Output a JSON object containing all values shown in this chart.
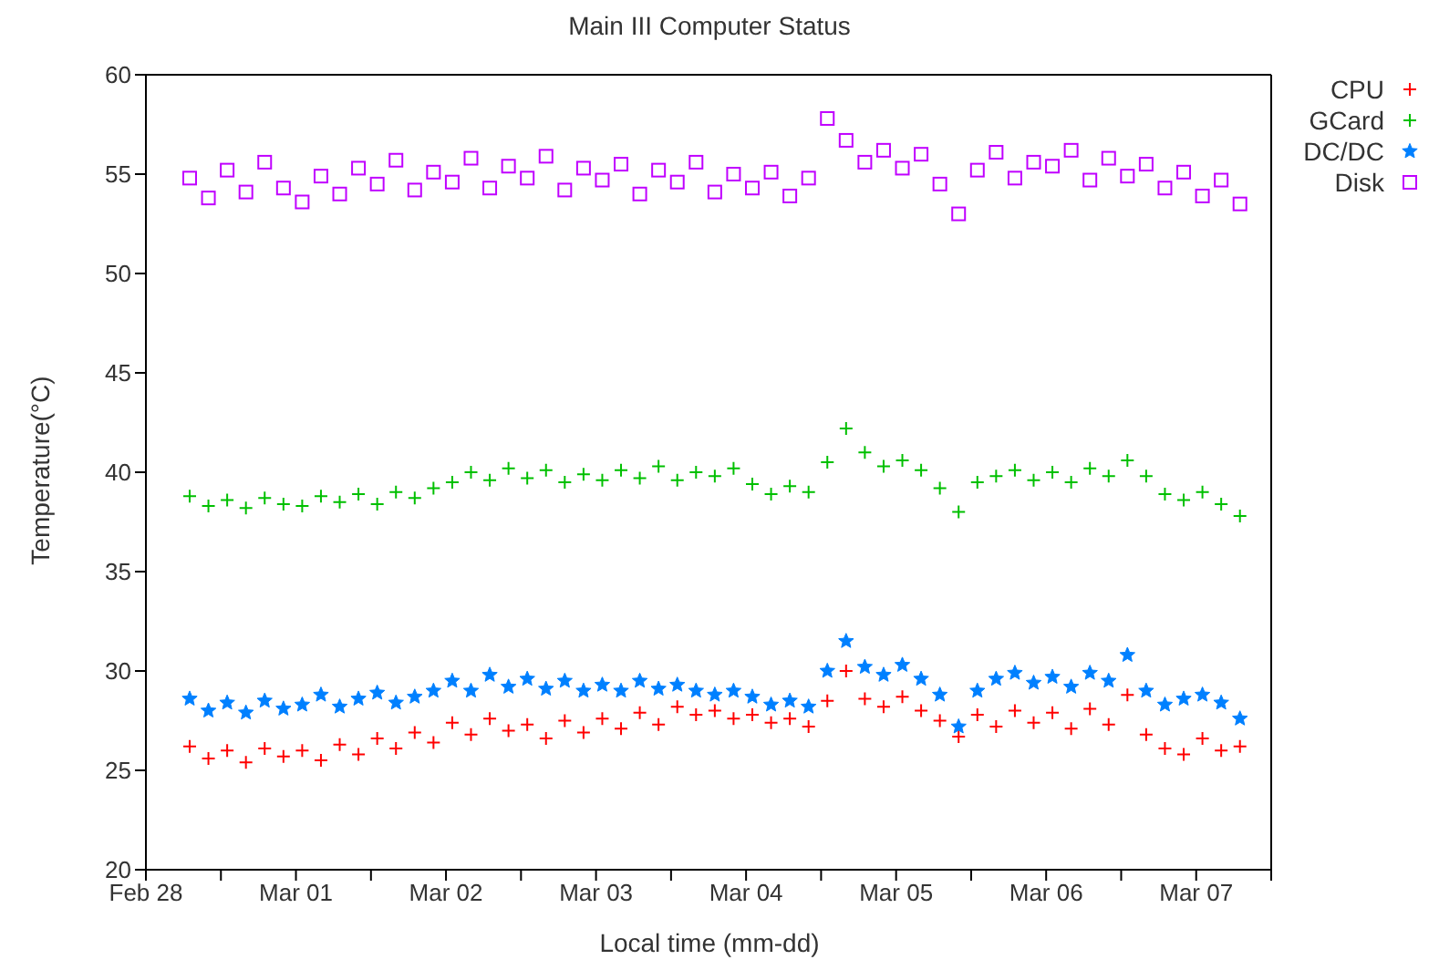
{
  "chart_data": {
    "type": "scatter",
    "title": "Main III Computer Status",
    "xlabel": "Local time (mm-dd)",
    "ylabel": "Temperature(°C)",
    "x": [
      "--02-28T07:00",
      "--02-28T10:00",
      "--02-28T13:00",
      "--02-28T16:00",
      "--02-28T19:00",
      "--02-28T22:00",
      "--03-01T01:00",
      "--03-01T04:00",
      "--03-01T07:00",
      "--03-01T10:00",
      "--03-01T13:00",
      "--03-01T16:00",
      "--03-01T19:00",
      "--03-01T22:00",
      "--03-02T01:00",
      "--03-02T04:00",
      "--03-02T07:00",
      "--03-02T10:00",
      "--03-02T13:00",
      "--03-02T16:00",
      "--03-02T19:00",
      "--03-02T22:00",
      "--03-03T01:00",
      "--03-03T04:00",
      "--03-03T07:00",
      "--03-03T10:00",
      "--03-03T13:00",
      "--03-03T16:00",
      "--03-03T19:00",
      "--03-03T22:00",
      "--03-04T01:00",
      "--03-04T04:00",
      "--03-04T07:00",
      "--03-04T10:00",
      "--03-04T13:00",
      "--03-04T16:00",
      "--03-04T19:00",
      "--03-04T22:00",
      "--03-05T01:00",
      "--03-05T04:00",
      "--03-05T07:00",
      "--03-05T10:00",
      "--03-05T13:00",
      "--03-05T16:00",
      "--03-05T19:00",
      "--03-05T22:00",
      "--03-06T01:00",
      "--03-06T04:00",
      "--03-06T07:00",
      "--03-06T10:00",
      "--03-06T13:00",
      "--03-06T16:00",
      "--03-06T19:00",
      "--03-06T22:00",
      "--03-07T01:00",
      "--03-07T04:00",
      "--03-07T07:00"
    ],
    "series": [
      {
        "name": "CPU",
        "color": "#ff0000",
        "marker": "cross",
        "values": [
          26.2,
          25.6,
          26.0,
          25.4,
          26.1,
          25.7,
          26.0,
          25.5,
          26.3,
          25.8,
          26.6,
          26.1,
          26.9,
          26.4,
          27.4,
          26.8,
          27.6,
          27.0,
          27.3,
          26.6,
          27.5,
          26.9,
          27.6,
          27.1,
          27.9,
          27.3,
          28.2,
          27.8,
          28.0,
          27.6,
          27.8,
          27.4,
          27.6,
          27.2,
          28.5,
          30.0,
          28.6,
          28.2,
          28.7,
          28.0,
          27.5,
          26.7,
          27.8,
          27.2,
          28.0,
          27.4,
          27.9,
          27.1,
          28.1,
          27.3,
          28.8,
          26.8,
          26.1,
          25.8,
          26.6,
          26.0,
          26.2
        ]
      },
      {
        "name": "GCard",
        "color": "#00c000",
        "marker": "cross",
        "values": [
          38.8,
          38.3,
          38.6,
          38.2,
          38.7,
          38.4,
          38.3,
          38.8,
          38.5,
          38.9,
          38.4,
          39.0,
          38.7,
          39.2,
          39.5,
          40.0,
          39.6,
          40.2,
          39.7,
          40.1,
          39.5,
          39.9,
          39.6,
          40.1,
          39.7,
          40.3,
          39.6,
          40.0,
          39.8,
          40.2,
          39.4,
          38.9,
          39.3,
          39.0,
          40.5,
          42.2,
          41.0,
          40.3,
          40.6,
          40.1,
          39.2,
          38.0,
          39.5,
          39.8,
          40.1,
          39.6,
          40.0,
          39.5,
          40.2,
          39.8,
          40.6,
          39.8,
          38.9,
          38.6,
          39.0,
          38.4,
          37.8
        ]
      },
      {
        "name": "DC/DC",
        "color": "#0080ff",
        "marker": "star",
        "values": [
          28.6,
          28.0,
          28.4,
          27.9,
          28.5,
          28.1,
          28.3,
          28.8,
          28.2,
          28.6,
          28.9,
          28.4,
          28.7,
          29.0,
          29.5,
          29.0,
          29.8,
          29.2,
          29.6,
          29.1,
          29.5,
          29.0,
          29.3,
          29.0,
          29.5,
          29.1,
          29.3,
          29.0,
          28.8,
          29.0,
          28.7,
          28.3,
          28.5,
          28.2,
          30.0,
          31.5,
          30.2,
          29.8,
          30.3,
          29.6,
          28.8,
          27.2,
          29.0,
          29.6,
          29.9,
          29.4,
          29.7,
          29.2,
          29.9,
          29.5,
          30.8,
          29.0,
          28.3,
          28.6,
          28.8,
          28.4,
          27.6
        ]
      },
      {
        "name": "Disk",
        "color": "#c000ff",
        "marker": "square",
        "values": [
          54.8,
          53.8,
          55.2,
          54.1,
          55.6,
          54.3,
          53.6,
          54.9,
          54.0,
          55.3,
          54.5,
          55.7,
          54.2,
          55.1,
          54.6,
          55.8,
          54.3,
          55.4,
          54.8,
          55.9,
          54.2,
          55.3,
          54.7,
          55.5,
          54.0,
          55.2,
          54.6,
          55.6,
          54.1,
          55.0,
          54.3,
          55.1,
          53.9,
          54.8,
          57.8,
          56.7,
          55.6,
          56.2,
          55.3,
          56.0,
          54.5,
          53.0,
          55.2,
          56.1,
          54.8,
          55.6,
          55.4,
          56.2,
          54.7,
          55.8,
          54.9,
          55.5,
          54.3,
          55.1,
          53.9,
          54.7,
          53.5
        ]
      }
    ],
    "xlim": [
      "--02-28T00:00",
      "--03-07T12:00"
    ],
    "xticks": [
      {
        "value": "--02-28",
        "label": "Feb 28"
      },
      {
        "value": "--02-28T12:00",
        "label": null
      },
      {
        "value": "--03-01",
        "label": "Mar 01"
      },
      {
        "value": "--03-01T12:00",
        "label": null
      },
      {
        "value": "--03-02",
        "label": "Mar 02"
      },
      {
        "value": "--03-02T12:00",
        "label": null
      },
      {
        "value": "--03-03",
        "label": "Mar 03"
      },
      {
        "value": "--03-03T12:00",
        "label": null
      },
      {
        "value": "--03-04",
        "label": "Mar 04"
      },
      {
        "value": "--03-04T12:00",
        "label": null
      },
      {
        "value": "--03-05",
        "label": "Mar 05"
      },
      {
        "value": "--03-05T12:00",
        "label": null
      },
      {
        "value": "--03-06",
        "label": "Mar 06"
      },
      {
        "value": "--03-06T12:00",
        "label": null
      },
      {
        "value": "--03-07",
        "label": "Mar 07"
      },
      {
        "value": "--03-07T12:00",
        "label": null
      }
    ],
    "ylim": [
      20,
      60
    ],
    "yticks": [
      20,
      25,
      30,
      35,
      40,
      45,
      50,
      55,
      60
    ],
    "legend": "top right"
  }
}
